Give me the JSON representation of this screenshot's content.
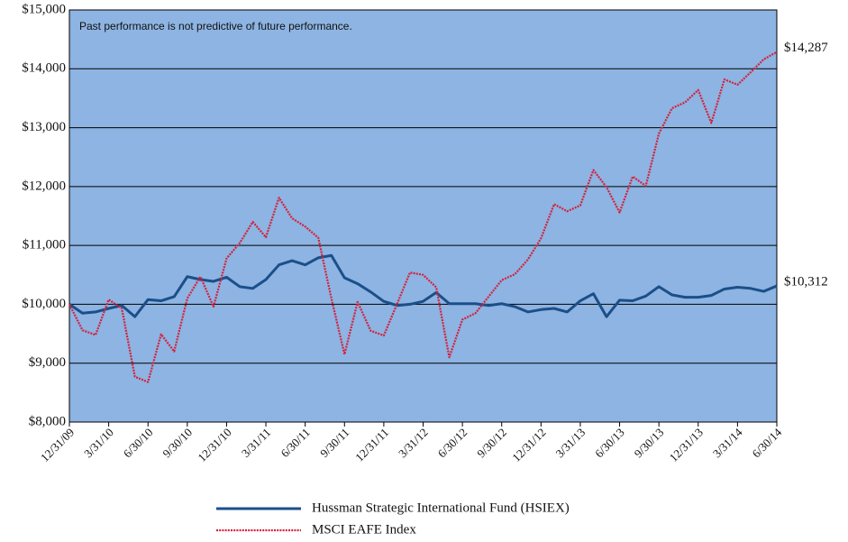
{
  "chart_data": {
    "type": "line",
    "annotation": "Past performance is not predictive of future performance.",
    "categories": [
      "12/31/09",
      null,
      null,
      "3/31/10",
      null,
      null,
      "6/30/10",
      null,
      null,
      "9/30/10",
      null,
      null,
      "12/31/10",
      null,
      null,
      "3/31/11",
      null,
      null,
      "6/30/11",
      null,
      null,
      "9/30/11",
      null,
      null,
      "12/31/11",
      null,
      null,
      "3/31/12",
      null,
      null,
      "6/30/12",
      null,
      null,
      "9/30/12",
      null,
      null,
      "12/31/12",
      null,
      null,
      "3/31/13",
      null,
      null,
      "6/30/13",
      null,
      null,
      "9/30/13",
      null,
      null,
      "12/31/13",
      null,
      null,
      "3/31/14",
      null,
      null,
      "6/30/14"
    ],
    "series": [
      {
        "name": "Hussman Strategic International Fund (HSIEX)",
        "color": "#1b4f8a",
        "dash": false,
        "values": [
          10000,
          9850,
          9870,
          9930,
          9980,
          9790,
          10080,
          10060,
          10130,
          10470,
          10420,
          10390,
          10460,
          10300,
          10270,
          10420,
          10670,
          10740,
          10670,
          10790,
          10830,
          10450,
          10350,
          10210,
          10050,
          9980,
          10000,
          10050,
          10200,
          10010,
          10010,
          10010,
          9980,
          10010,
          9960,
          9870,
          9910,
          9930,
          9870,
          10060,
          10180,
          9790,
          10070,
          10060,
          10140,
          10300,
          10160,
          10120,
          10120,
          10150,
          10260,
          10290,
          10270,
          10220,
          10312
        ],
        "value_labels": [
          null,
          null,
          null,
          null,
          null,
          null,
          null,
          null,
          null,
          null,
          null,
          null,
          null,
          null,
          null,
          null,
          null,
          null,
          null,
          null,
          null,
          null,
          null,
          null,
          null,
          null,
          null,
          null,
          null,
          null,
          null,
          null,
          null,
          null,
          null,
          null,
          null,
          null,
          null,
          null,
          null,
          null,
          null,
          null,
          null,
          null,
          null,
          null,
          null,
          null,
          null,
          null,
          null,
          null,
          "$10,312"
        ]
      },
      {
        "name": "MSCI EAFE Index",
        "color": "#d4213d",
        "dash": true,
        "values": [
          10000,
          9560,
          9480,
          10080,
          9930,
          8770,
          8680,
          9490,
          9200,
          10100,
          10470,
          9960,
          10780,
          11040,
          11400,
          11140,
          11810,
          11460,
          11320,
          11130,
          10100,
          9150,
          10040,
          9550,
          9470,
          10000,
          10540,
          10500,
          10290,
          9100,
          9740,
          9850,
          10130,
          10410,
          10510,
          10760,
          11120,
          11700,
          11580,
          11680,
          12280,
          11990,
          11560,
          12170,
          12010,
          12900,
          13330,
          13430,
          13640,
          13080,
          13820,
          13730,
          13940,
          14160,
          14287
        ],
        "value_labels": [
          null,
          null,
          null,
          null,
          null,
          null,
          null,
          null,
          null,
          null,
          null,
          null,
          null,
          null,
          null,
          null,
          null,
          null,
          null,
          null,
          null,
          null,
          null,
          null,
          null,
          null,
          null,
          null,
          null,
          null,
          null,
          null,
          null,
          null,
          null,
          null,
          null,
          null,
          null,
          null,
          null,
          null,
          null,
          null,
          null,
          null,
          null,
          null,
          null,
          null,
          null,
          null,
          null,
          null,
          "$14,287"
        ]
      }
    ],
    "ylim": [
      8000,
      15000
    ],
    "yticks": [
      {
        "value": 8000,
        "label": "$8,000"
      },
      {
        "value": 9000,
        "label": "$9,000"
      },
      {
        "value": 10000,
        "label": "$10,000"
      },
      {
        "value": 11000,
        "label": "$11,000"
      },
      {
        "value": 12000,
        "label": "$12,000"
      },
      {
        "value": 13000,
        "label": "$13,000"
      },
      {
        "value": 14000,
        "label": "$14,000"
      },
      {
        "value": 15000,
        "label": "$15,000"
      }
    ],
    "grid": true,
    "plot_background": "#8db4e2",
    "legend": "bottom"
  }
}
